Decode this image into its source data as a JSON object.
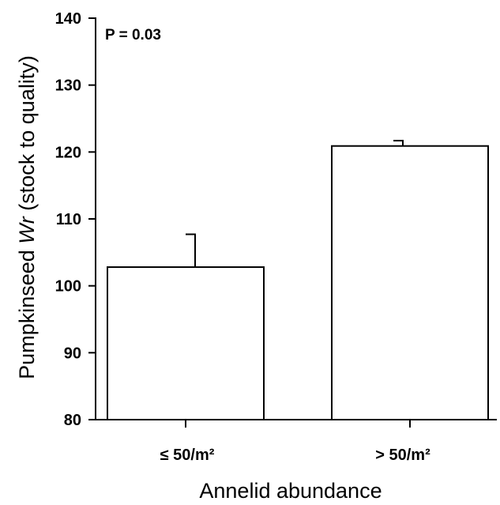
{
  "chart_data": {
    "type": "bar",
    "categories": [
      "≤ 50/m²",
      "> 50/m²"
    ],
    "values": [
      102.8,
      120.9
    ],
    "error_upper": [
      107.7,
      121.7
    ],
    "title": "",
    "xlabel": "Annelid abundance",
    "ylabel": "Pumpkinseed Wr (stock to quality)",
    "ylabel_italic": "Wr",
    "ylim": [
      80,
      140
    ],
    "yticks": [
      "80",
      "90",
      "100",
      "110",
      "120",
      "130",
      "140"
    ],
    "annotation": "P = 0.03",
    "grid": false,
    "legend": "none",
    "bar_fill": "#ffffff",
    "line_color": "#000000"
  }
}
